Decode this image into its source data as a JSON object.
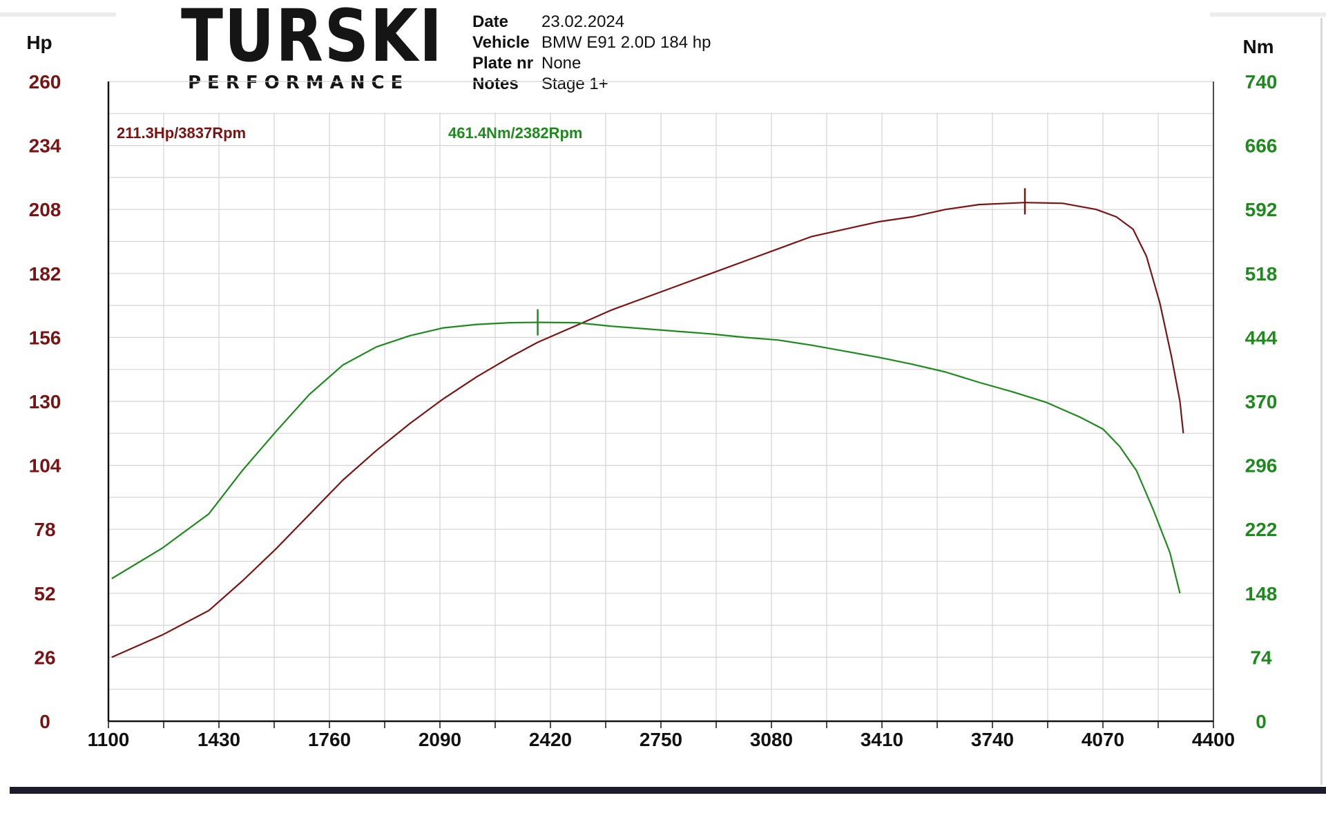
{
  "header": {
    "logo_main": "TURSKI",
    "logo_sub": "PERFORMANCE",
    "fields": [
      {
        "label": "Date",
        "value": "23.02.2024"
      },
      {
        "label": "Vehicle",
        "value": "BMW E91 2.0D 184 hp"
      },
      {
        "label": "Plate nr",
        "value": "None"
      },
      {
        "label": "Notes",
        "value": "Stage 1+"
      }
    ]
  },
  "colors": {
    "power": "#7a1414",
    "torque": "#1e8a1e",
    "grid": "#d4d4d4",
    "axis": "#111111"
  },
  "chart_data": {
    "type": "line",
    "x_ticks": [
      "1100",
      "1430",
      "1760",
      "2090",
      "2420",
      "2750",
      "3080",
      "3410",
      "3740",
      "4070",
      "4400"
    ],
    "xlim": [
      1100,
      4400
    ],
    "y_left_unit": "Hp",
    "y_left_ticks": [
      "0",
      "26",
      "52",
      "78",
      "104",
      "130",
      "156",
      "182",
      "208",
      "234",
      "260"
    ],
    "ylim_left": [
      0,
      260
    ],
    "y_right_unit": "Nm",
    "y_right_ticks": [
      "0",
      "74",
      "148",
      "222",
      "296",
      "370",
      "444",
      "518",
      "592",
      "666",
      "740"
    ],
    "ylim_right": [
      0,
      740
    ],
    "grid": true,
    "annotations": [
      {
        "text": "211.3Hp/3837Rpm",
        "series": "power"
      },
      {
        "text": "461.4Nm/2382Rpm",
        "series": "torque"
      }
    ],
    "series": [
      {
        "key": "power",
        "axis": "left",
        "peak": {
          "x": 3837,
          "y": 211.3
        },
        "points": [
          [
            1110,
            26
          ],
          [
            1260,
            35
          ],
          [
            1400,
            45
          ],
          [
            1500,
            57
          ],
          [
            1600,
            70
          ],
          [
            1700,
            84
          ],
          [
            1800,
            98
          ],
          [
            1900,
            110
          ],
          [
            2000,
            121
          ],
          [
            2100,
            131
          ],
          [
            2200,
            140
          ],
          [
            2300,
            148
          ],
          [
            2382,
            154
          ],
          [
            2500,
            161
          ],
          [
            2600,
            167
          ],
          [
            2700,
            172
          ],
          [
            2800,
            177
          ],
          [
            2900,
            182
          ],
          [
            3000,
            187
          ],
          [
            3100,
            192
          ],
          [
            3200,
            197
          ],
          [
            3300,
            200
          ],
          [
            3400,
            203
          ],
          [
            3500,
            205
          ],
          [
            3600,
            208
          ],
          [
            3700,
            210
          ],
          [
            3837,
            210.8
          ],
          [
            3950,
            210.5
          ],
          [
            4050,
            208
          ],
          [
            4110,
            205
          ],
          [
            4160,
            200
          ],
          [
            4200,
            189
          ],
          [
            4240,
            170
          ],
          [
            4275,
            148
          ],
          [
            4300,
            130
          ],
          [
            4310,
            117
          ]
        ]
      },
      {
        "key": "torque",
        "axis": "right",
        "peak": {
          "x": 2382,
          "y": 461.4
        },
        "points": [
          [
            1110,
            165
          ],
          [
            1260,
            200
          ],
          [
            1400,
            240
          ],
          [
            1500,
            290
          ],
          [
            1600,
            335
          ],
          [
            1700,
            378
          ],
          [
            1800,
            412
          ],
          [
            1900,
            433
          ],
          [
            2000,
            446
          ],
          [
            2100,
            455
          ],
          [
            2200,
            459
          ],
          [
            2300,
            461
          ],
          [
            2382,
            461.4
          ],
          [
            2500,
            461
          ],
          [
            2600,
            457
          ],
          [
            2700,
            454
          ],
          [
            2800,
            451
          ],
          [
            2900,
            448
          ],
          [
            3000,
            444
          ],
          [
            3100,
            441
          ],
          [
            3200,
            435
          ],
          [
            3300,
            428
          ],
          [
            3400,
            421
          ],
          [
            3500,
            413
          ],
          [
            3600,
            404
          ],
          [
            3700,
            392
          ],
          [
            3800,
            381
          ],
          [
            3900,
            369
          ],
          [
            4000,
            352
          ],
          [
            4070,
            338
          ],
          [
            4120,
            318
          ],
          [
            4170,
            290
          ],
          [
            4220,
            245
          ],
          [
            4270,
            195
          ],
          [
            4300,
            148
          ]
        ]
      }
    ]
  }
}
